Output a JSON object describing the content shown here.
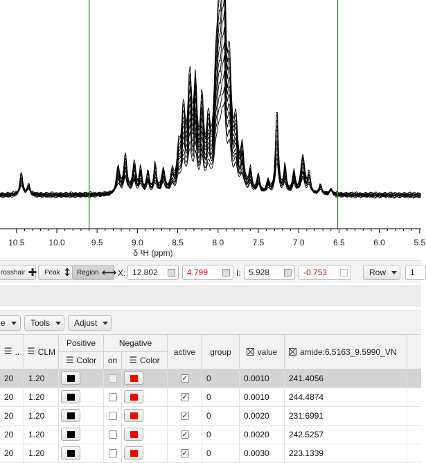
{
  "spectrum": {
    "xlabel": "δ ¹H (ppm)",
    "xticks": [
      "10.5",
      "10.0",
      "9.5",
      "9.0",
      "8.5",
      "8.0",
      "7.5",
      "7.0",
      "6.5",
      "6.0",
      "5.5"
    ],
    "region_left_ppm": 9.599,
    "region_right_ppm": 6.5163,
    "region_color": "#2e8b2e",
    "trace_color": "#000000"
  },
  "crossbar": {
    "crosshair_label": "rosshair",
    "peak_label": "Peak",
    "region_label": "Region",
    "x_label": "X:",
    "x_value": "12.802",
    "x_delta": "4.799",
    "i_label": "I:",
    "i_value": "5.928",
    "i_delta": "-0.753",
    "row_label": "Row",
    "row_value": "1",
    "delta_color": "#d01010"
  },
  "menubar": {
    "first_label": "e",
    "tools_label": "Tools",
    "adjust_label": "Adjust"
  },
  "table": {
    "headers": {
      "col0": "..",
      "clm": "CLM",
      "positive": "Positive",
      "negative": "Negative",
      "pos_color": "Color",
      "neg_on": "on",
      "neg_color": "Color",
      "active": "active",
      "group": "group",
      "value": "value",
      "amide": "amide:6.5163_9.5990_VN"
    },
    "rows": [
      {
        "lvl": "20",
        "clm": "1.20",
        "active": "✓",
        "group": "0",
        "value": "0.0010",
        "amide": "241.4056"
      },
      {
        "lvl": "20",
        "clm": "1.20",
        "active": "✓",
        "group": "0",
        "value": "0.0010",
        "amide": "244.4874"
      },
      {
        "lvl": "20",
        "clm": "1.20",
        "active": "✓",
        "group": "0",
        "value": "0.0020",
        "amide": "231.6991"
      },
      {
        "lvl": "20",
        "clm": "1.20",
        "active": "✓",
        "group": "0",
        "value": "0.0020",
        "amide": "242.5257"
      },
      {
        "lvl": "20",
        "clm": "1.20",
        "active": "✓",
        "group": "0",
        "value": "0.0030",
        "amide": "223.1339"
      }
    ],
    "pos_swatch_color": "#000000",
    "neg_swatch_color": "#ff0000"
  }
}
